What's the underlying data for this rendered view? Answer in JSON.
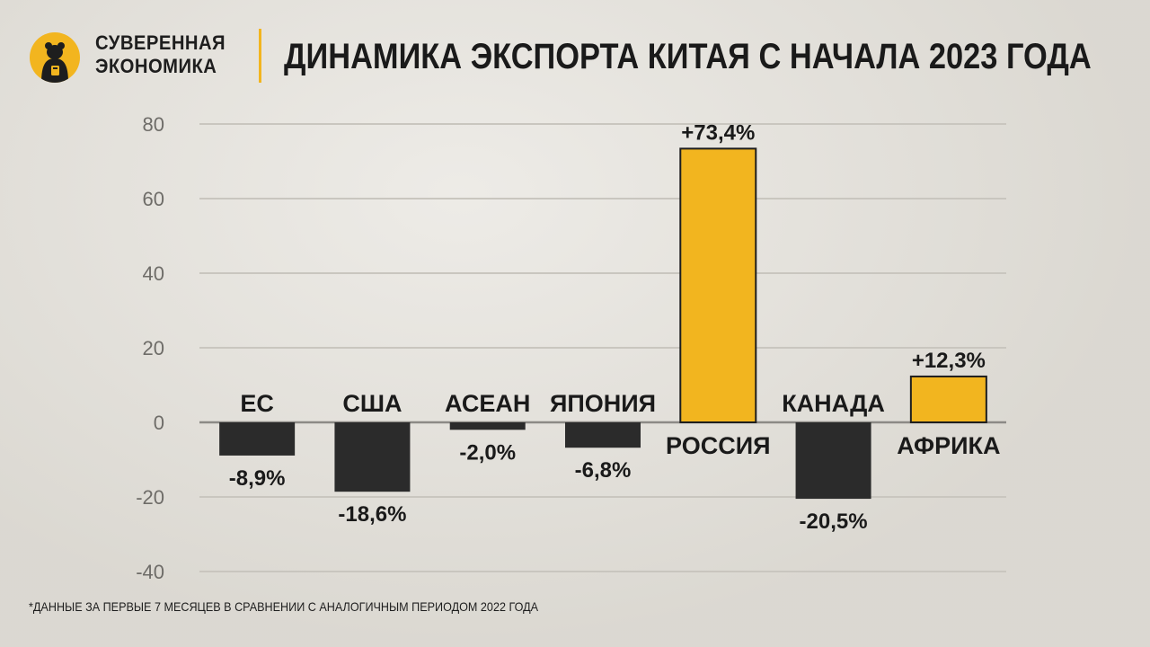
{
  "brand": {
    "line1": "СУВЕРЕННАЯ",
    "line2": "ЭКОНОМИКА"
  },
  "title": "ДИНАМИКА ЭКСПОРТА КИТАЯ С НАЧАЛА 2023 ГОДА",
  "footnote": "*ДАННЫЕ ЗА ПЕРВЫЕ 7 МЕСЯЦЕВ В СРАВНЕНИИ С АНАЛОГИЧНЫМ ПЕРИОДОМ 2022 ГОДА",
  "colors": {
    "accent": "#f2b51f",
    "negative": "#2b2b2b",
    "text": "#1a1a1a",
    "grid": "#c9c6bf",
    "axis": "#6e6c68"
  },
  "icons": {
    "logo": "bear-logo-icon"
  },
  "chart_data": {
    "type": "bar",
    "categories": [
      "ЕС",
      "США",
      "АСЕАН",
      "ЯПОНИЯ",
      "РОССИЯ",
      "КАНАДА",
      "АФРИКА"
    ],
    "values": [
      -8.9,
      -18.6,
      -2.0,
      -6.8,
      73.4,
      -20.5,
      12.3
    ],
    "value_labels": [
      "-8,9%",
      "-18,6%",
      "-2,0%",
      "-6,8%",
      "+73,4%",
      "-20,5%",
      "+12,3%"
    ],
    "yticks": [
      80,
      60,
      40,
      20,
      0,
      -20,
      -40
    ],
    "ylim": [
      -40,
      80
    ],
    "grid": true,
    "legend": "none"
  }
}
